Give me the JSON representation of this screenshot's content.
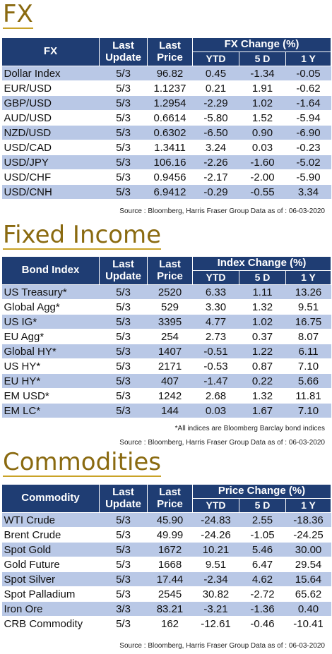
{
  "fx": {
    "title": "FX",
    "headers": {
      "name": "FX",
      "last_update": "Last Update",
      "last_price": "Last Price",
      "change_group": "FX Change (%)",
      "ytd": "YTD",
      "five_d": "5 D",
      "one_y": "1 Y"
    },
    "rows": [
      {
        "name": "Dollar Index",
        "update": "5/3",
        "price": "96.82",
        "ytd": "0.45",
        "d5": "-1.34",
        "y1": "-0.05"
      },
      {
        "name": "EUR/USD",
        "update": "5/3",
        "price": "1.1237",
        "ytd": "0.21",
        "d5": "1.91",
        "y1": "-0.62"
      },
      {
        "name": "GBP/USD",
        "update": "5/3",
        "price": "1.2954",
        "ytd": "-2.29",
        "d5": "1.02",
        "y1": "-1.64"
      },
      {
        "name": "AUD/USD",
        "update": "5/3",
        "price": "0.6614",
        "ytd": "-5.80",
        "d5": "1.52",
        "y1": "-5.94"
      },
      {
        "name": "NZD/USD",
        "update": "5/3",
        "price": "0.6302",
        "ytd": "-6.50",
        "d5": "0.90",
        "y1": "-6.90"
      },
      {
        "name": "USD/CAD",
        "update": "5/3",
        "price": "1.3411",
        "ytd": "3.24",
        "d5": "0.03",
        "y1": "-0.23"
      },
      {
        "name": "USD/JPY",
        "update": "5/3",
        "price": "106.16",
        "ytd": "-2.26",
        "d5": "-1.60",
        "y1": "-5.02"
      },
      {
        "name": "USD/CHF",
        "update": "5/3",
        "price": "0.9456",
        "ytd": "-2.17",
        "d5": "-2.00",
        "y1": "-5.90"
      },
      {
        "name": "USD/CNH",
        "update": "5/3",
        "price": "6.9412",
        "ytd": "-0.29",
        "d5": "-0.55",
        "y1": "3.34"
      }
    ],
    "source": "Source : Bloomberg, Harris Fraser Group Data as of : 06-03-2020"
  },
  "fixed_income": {
    "title": "Fixed Income",
    "headers": {
      "name": "Bond Index",
      "last_update": "Last Update",
      "last_price": "Last Price",
      "change_group": "Index Change (%)",
      "ytd": "YTD",
      "five_d": "5 D",
      "one_y": "1 Y"
    },
    "rows": [
      {
        "name": "US Treasury*",
        "update": "5/3",
        "price": "2520",
        "ytd": "6.33",
        "d5": "1.11",
        "y1": "13.26"
      },
      {
        "name": "Global Agg*",
        "update": "5/3",
        "price": "529",
        "ytd": "3.30",
        "d5": "1.32",
        "y1": "9.51"
      },
      {
        "name": "US IG*",
        "update": "5/3",
        "price": "3395",
        "ytd": "4.77",
        "d5": "1.02",
        "y1": "16.75"
      },
      {
        "name": "EU Agg*",
        "update": "5/3",
        "price": "254",
        "ytd": "2.73",
        "d5": "0.37",
        "y1": "8.07"
      },
      {
        "name": "Global HY*",
        "update": "5/3",
        "price": "1407",
        "ytd": "-0.51",
        "d5": "1.22",
        "y1": "6.11"
      },
      {
        "name": "US HY*",
        "update": "5/3",
        "price": "2171",
        "ytd": "-0.53",
        "d5": "0.87",
        "y1": "7.10"
      },
      {
        "name": "EU HY*",
        "update": "5/3",
        "price": "407",
        "ytd": "-1.47",
        "d5": "0.22",
        "y1": "5.66"
      },
      {
        "name": "EM USD*",
        "update": "5/3",
        "price": "1242",
        "ytd": "2.68",
        "d5": "1.32",
        "y1": "11.81"
      },
      {
        "name": "EM LC*",
        "update": "5/3",
        "price": "144",
        "ytd": "0.03",
        "d5": "1.67",
        "y1": "7.10"
      }
    ],
    "note": "*All indices are Bloomberg Barclay bond indices",
    "source": "Source : Bloomberg, Harris Fraser Group Data as of : 06-03-2020"
  },
  "commodities": {
    "title": "Commodities",
    "headers": {
      "name": "Commodity",
      "last_update": "Last Update",
      "last_price": "Last Price",
      "change_group": "Price Change (%)",
      "ytd": "YTD",
      "five_d": "5 D",
      "one_y": "1 Y"
    },
    "rows": [
      {
        "name": "WTI Crude",
        "update": "5/3",
        "price": "45.90",
        "ytd": "-24.83",
        "d5": "2.55",
        "y1": "-18.36"
      },
      {
        "name": "Brent Crude",
        "update": "5/3",
        "price": "49.99",
        "ytd": "-24.26",
        "d5": "-1.05",
        "y1": "-24.25"
      },
      {
        "name": "Spot Gold",
        "update": "5/3",
        "price": "1672",
        "ytd": "10.21",
        "d5": "5.46",
        "y1": "30.00"
      },
      {
        "name": "Gold Future",
        "update": "5/3",
        "price": "1668",
        "ytd": "9.51",
        "d5": "6.47",
        "y1": "29.54"
      },
      {
        "name": "Spot Silver",
        "update": "5/3",
        "price": "17.44",
        "ytd": "-2.34",
        "d5": "4.62",
        "y1": "15.64"
      },
      {
        "name": "Spot Palladium",
        "update": "5/3",
        "price": "2545",
        "ytd": "30.82",
        "d5": "-2.72",
        "y1": "65.62"
      },
      {
        "name": "Iron Ore",
        "update": "3/3",
        "price": "83.21",
        "ytd": "-3.21",
        "d5": "-1.36",
        "y1": "0.40"
      },
      {
        "name": "CRB Commodity",
        "update": "5/3",
        "price": "162",
        "ytd": "-12.61",
        "d5": "-0.46",
        "y1": "-10.41"
      }
    ],
    "source": "Source : Bloomberg, Harris Fraser Group Data as of : 06-03-2020"
  },
  "colors": {
    "header_bg": "#1f3d73",
    "row_shade": "#b9c8e6",
    "title_gold": "#8a6a10"
  }
}
